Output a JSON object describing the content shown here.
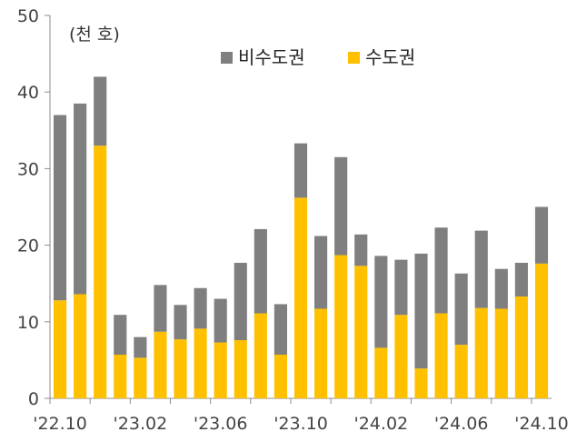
{
  "chart_data": {
    "type": "bar",
    "stacked": true,
    "unit_label": "(천 호)",
    "title": "",
    "xlabel": "",
    "ylabel": "",
    "ylim": [
      0,
      50
    ],
    "yticks": [
      0,
      10,
      20,
      30,
      40,
      50
    ],
    "grid": false,
    "legend_position": "top",
    "x_tick_labels": [
      "'22.10",
      "'23.02",
      "'23.06",
      "'23.10",
      "'24.02",
      "'24.06",
      "'24.10"
    ],
    "x_tick_label_every": 4,
    "categories": [
      "22.10",
      "22.11",
      "22.12",
      "23.01",
      "23.02",
      "23.03",
      "23.04",
      "23.05",
      "23.06",
      "23.07",
      "23.08",
      "23.09",
      "23.10",
      "23.11",
      "23.12",
      "24.01",
      "24.02",
      "24.03",
      "24.04",
      "24.05",
      "24.06",
      "24.07",
      "24.08",
      "24.09",
      "24.10"
    ],
    "series": [
      {
        "name": "수도권",
        "color": "#FFC000",
        "values": [
          12.8,
          13.6,
          33.0,
          5.7,
          5.3,
          8.7,
          7.7,
          9.1,
          7.3,
          7.6,
          11.1,
          5.7,
          26.2,
          11.7,
          18.7,
          17.3,
          6.6,
          10.9,
          3.9,
          11.1,
          7.0,
          11.8,
          11.7,
          13.3,
          17.6
        ]
      },
      {
        "name": "비수도권",
        "color": "#7F7F7F",
        "values": [
          24.2,
          24.9,
          9.0,
          5.2,
          2.7,
          6.1,
          4.5,
          5.3,
          5.7,
          10.1,
          11.0,
          6.6,
          7.1,
          9.5,
          12.8,
          4.1,
          12.0,
          7.2,
          15.0,
          11.2,
          9.3,
          10.1,
          5.2,
          4.4,
          7.4
        ]
      }
    ]
  }
}
